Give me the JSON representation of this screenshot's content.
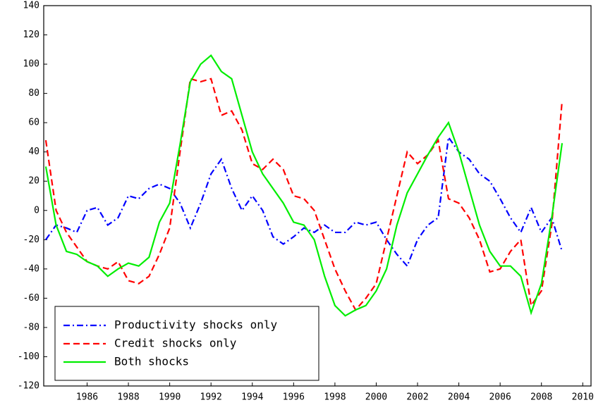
{
  "chart_data": {
    "type": "line",
    "x": [
      1984,
      1984.5,
      1985,
      1985.5,
      1986,
      1986.5,
      1987,
      1987.5,
      1988,
      1988.5,
      1989,
      1989.5,
      1990,
      1990.5,
      1991,
      1991.5,
      1992,
      1992.5,
      1993,
      1993.5,
      1994,
      1994.5,
      1995,
      1995.5,
      1996,
      1996.5,
      1997,
      1997.5,
      1998,
      1998.5,
      1999,
      1999.5,
      2000,
      2000.5,
      2001,
      2001.5,
      2002,
      2002.5,
      2003,
      2003.5,
      2004,
      2004.5,
      2005,
      2005.5,
      2006,
      2006.5,
      2007,
      2007.5,
      2008,
      2008.5,
      2009
    ],
    "series": [
      {
        "name": "Productivity shocks only",
        "color": "#0000ff",
        "style": "dashdot",
        "values": [
          -20,
          -10,
          -12,
          -15,
          0,
          2,
          -10,
          -5,
          10,
          8,
          15,
          18,
          15,
          5,
          -12,
          5,
          25,
          35,
          15,
          0,
          10,
          0,
          -18,
          -23,
          -18,
          -12,
          -15,
          -10,
          -15,
          -15,
          -8,
          -10,
          -8,
          -20,
          -30,
          -38,
          -20,
          -10,
          -5,
          50,
          40,
          35,
          25,
          20,
          8,
          -5,
          -15,
          2,
          -15,
          -5,
          -28
        ]
      },
      {
        "name": "Credit shocks only",
        "color": "#ff0000",
        "style": "dashed",
        "values": [
          48,
          0,
          -15,
          -25,
          -35,
          -38,
          -40,
          -35,
          -48,
          -50,
          -45,
          -30,
          -12,
          40,
          90,
          88,
          90,
          65,
          68,
          55,
          32,
          28,
          35,
          28,
          10,
          8,
          0,
          -20,
          -40,
          -55,
          -68,
          -60,
          -50,
          -20,
          10,
          40,
          32,
          38,
          48,
          8,
          5,
          -5,
          -20,
          -42,
          -40,
          -28,
          -20,
          -65,
          -55,
          -10,
          75
        ]
      },
      {
        "name": "Both shocks",
        "color": "#00ee00",
        "style": "solid",
        "values": [
          30,
          -10,
          -28,
          -30,
          -35,
          -38,
          -45,
          -40,
          -36,
          -38,
          -32,
          -8,
          5,
          45,
          88,
          100,
          106,
          95,
          90,
          65,
          40,
          25,
          15,
          5,
          -8,
          -10,
          -20,
          -45,
          -65,
          -72,
          -68,
          -65,
          -55,
          -40,
          -10,
          12,
          25,
          38,
          50,
          60,
          40,
          15,
          -10,
          -28,
          -38,
          -38,
          -45,
          -70,
          -50,
          -5,
          46
        ]
      }
    ],
    "xlim": [
      1983.9,
      2010.4
    ],
    "xticks": [
      1986,
      1988,
      1990,
      1992,
      1994,
      1996,
      1998,
      2000,
      2002,
      2004,
      2006,
      2008,
      2010
    ],
    "ylim": [
      -120,
      140
    ],
    "yticks": [
      -120,
      -100,
      -80,
      -60,
      -40,
      -20,
      0,
      20,
      40,
      60,
      80,
      100,
      120,
      140
    ],
    "grid": false,
    "legend": "lower left"
  }
}
